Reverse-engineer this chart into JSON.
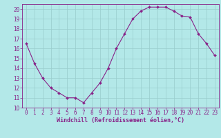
{
  "x": [
    0,
    1,
    2,
    3,
    4,
    5,
    6,
    7,
    8,
    9,
    10,
    11,
    12,
    13,
    14,
    15,
    16,
    17,
    18,
    19,
    20,
    21,
    22,
    23
  ],
  "y": [
    16.5,
    14.5,
    13.0,
    12.0,
    11.5,
    11.0,
    11.0,
    10.5,
    11.5,
    12.5,
    14.0,
    16.0,
    17.5,
    19.0,
    19.8,
    20.2,
    20.2,
    20.2,
    19.8,
    19.3,
    19.2,
    17.5,
    16.5,
    15.3
  ],
  "line_color": "#882288",
  "marker": "D",
  "marker_size": 2.0,
  "bg_color": "#b3e8e8",
  "grid_color": "#99cccc",
  "axis_color": "#882288",
  "tick_color": "#882288",
  "xlabel": "Windchill (Refroidissement éolien,°C)",
  "ylim": [
    10,
    20.5
  ],
  "xlim": [
    -0.5,
    23.5
  ],
  "yticks": [
    10,
    11,
    12,
    13,
    14,
    15,
    16,
    17,
    18,
    19,
    20
  ],
  "xticks": [
    0,
    1,
    2,
    3,
    4,
    5,
    6,
    7,
    8,
    9,
    10,
    11,
    12,
    13,
    14,
    15,
    16,
    17,
    18,
    19,
    20,
    21,
    22,
    23
  ],
  "font_size": 5.5,
  "xlabel_font_size": 6.0,
  "linewidth": 0.8
}
